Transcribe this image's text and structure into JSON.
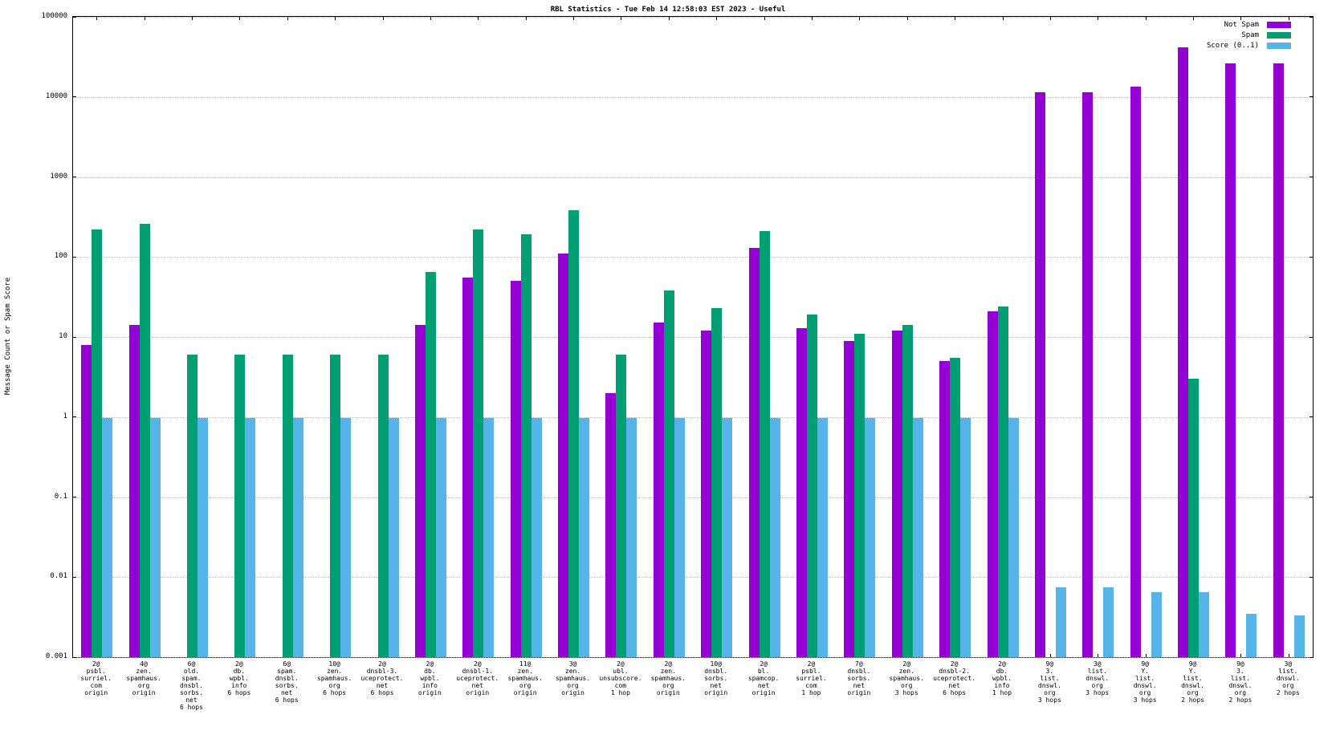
{
  "title": "RBL Statistics - Tue Feb 14 12:58:03 EST 2023 - Useful",
  "y_axis_label": "Message Count or Spam Score",
  "legend": {
    "items": [
      {
        "label": "Not Spam",
        "color": "#9400d3"
      },
      {
        "label": "Spam",
        "color": "#009e73"
      },
      {
        "label": "Score (0..1)",
        "color": "#56b4e9"
      }
    ]
  },
  "chart_data": {
    "type": "bar",
    "scale": "log",
    "title": "RBL Statistics - Tue Feb 14 12:58:03 EST 2023 - Useful",
    "xlabel": "",
    "ylabel": "Message Count or Spam Score",
    "ylim": [
      0.001,
      100000
    ],
    "grid": true,
    "legend_position": "top-right",
    "yticks": [
      {
        "value": 0.001,
        "label": "0.001"
      },
      {
        "value": 0.01,
        "label": "0.01"
      },
      {
        "value": 0.1,
        "label": "0.1"
      },
      {
        "value": 1,
        "label": "1"
      },
      {
        "value": 10,
        "label": "10"
      },
      {
        "value": 100,
        "label": "100"
      },
      {
        "value": 1000,
        "label": "1000"
      },
      {
        "value": 10000,
        "label": "10000"
      },
      {
        "value": 100000,
        "label": "100000"
      }
    ],
    "categories": [
      [
        "2@",
        "psbl.",
        "surriel.",
        "com",
        "origin"
      ],
      [
        "4@",
        "zen.",
        "spamhaus.",
        "org",
        "origin"
      ],
      [
        "6@",
        "old.",
        "spam.",
        "dnsbl.",
        "sorbs.",
        "net",
        "6 hops"
      ],
      [
        "2@",
        "db.",
        "wpbl.",
        "info",
        "6 hops"
      ],
      [
        "6@",
        "spam.",
        "dnsbl.",
        "sorbs.",
        "net",
        "6 hops"
      ],
      [
        "10@",
        "zen.",
        "spamhaus.",
        "org",
        "6 hops"
      ],
      [
        "2@",
        "dnsbl-3.",
        "uceprotect.",
        "net",
        "6 hops"
      ],
      [
        "2@",
        "db.",
        "wpbl.",
        "info",
        "origin"
      ],
      [
        "2@",
        "dnsbl-1.",
        "uceprotect.",
        "net",
        "origin"
      ],
      [
        "11@",
        "zen.",
        "spamhaus.",
        "org",
        "origin"
      ],
      [
        "3@",
        "zen.",
        "spamhaus.",
        "org",
        "origin"
      ],
      [
        "2@",
        "ubl.",
        "unsubscore.",
        "com",
        "1 hop"
      ],
      [
        "2@",
        "zen.",
        "spamhaus.",
        "org",
        "origin"
      ],
      [
        "10@",
        "dnsbl.",
        "sorbs.",
        "net",
        "origin"
      ],
      [
        "2@",
        "bl.",
        "spamcop.",
        "net",
        "origin"
      ],
      [
        "2@",
        "psbl.",
        "surriel.",
        "com",
        "1 hop"
      ],
      [
        "7@",
        "dnsbl.",
        "sorbs.",
        "net",
        "origin"
      ],
      [
        "2@",
        "zen.",
        "spamhaus.",
        "org",
        "3 hops"
      ],
      [
        "2@",
        "dnsbl-2.",
        "uceprotect.",
        "net",
        "6 hops"
      ],
      [
        "2@",
        "db.",
        "wpbl.",
        "info",
        "1 hop"
      ],
      [
        "9@",
        "3.",
        "list.",
        "dnswl.",
        "org",
        "3 hops"
      ],
      [
        "3@",
        "list.",
        "dnswl.",
        "org",
        "3 hops"
      ],
      [
        "9@",
        "Y.",
        "list.",
        "dnswl.",
        "org",
        "3 hops"
      ],
      [
        "9@",
        "Y.",
        "list.",
        "dnswl.",
        "org",
        "2 hops"
      ],
      [
        "9@",
        "3.",
        "list.",
        "dnswl.",
        "org",
        "2 hops"
      ],
      [
        "3@",
        "list.",
        "dnswl.",
        "org",
        "2 hops"
      ]
    ],
    "series": [
      {
        "name": "Not Spam",
        "color": "#9400d3",
        "values": [
          8,
          14,
          null,
          null,
          null,
          null,
          null,
          14,
          55,
          50,
          110,
          2,
          15,
          12,
          130,
          13,
          9,
          12,
          5,
          21,
          11500,
          11500,
          13500,
          42000,
          26000,
          26000
        ]
      },
      {
        "name": "Spam",
        "color": "#009e73",
        "values": [
          220,
          260,
          6,
          6,
          6,
          6,
          6,
          65,
          220,
          190,
          380,
          6,
          38,
          23,
          210,
          19,
          11,
          14,
          5.5,
          24,
          null,
          null,
          null,
          3,
          null,
          null
        ]
      },
      {
        "name": "Score (0..1)",
        "color": "#56b4e9",
        "values": [
          0.97,
          0.97,
          0.97,
          0.97,
          0.97,
          0.97,
          0.97,
          0.97,
          0.97,
          0.97,
          0.97,
          0.97,
          0.97,
          0.97,
          0.97,
          0.97,
          0.97,
          0.97,
          0.97,
          0.97,
          0.0075,
          0.0075,
          0.0065,
          0.0065,
          0.0035,
          0.0033
        ]
      }
    ]
  }
}
